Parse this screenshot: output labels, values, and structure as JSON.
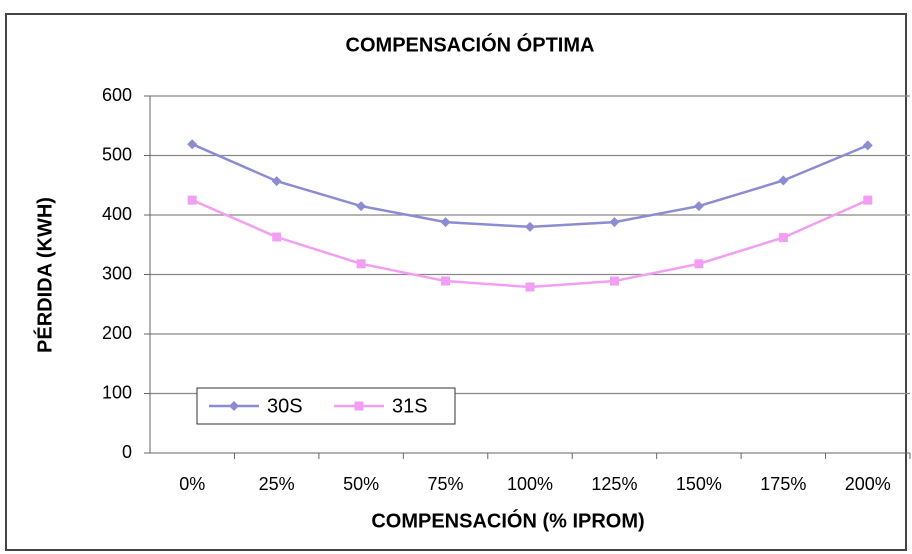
{
  "chart_data": {
    "type": "line",
    "title": "COMPENSACIÓN ÓPTIMA",
    "xlabel": "COMPENSACIÓN (% IPROM)",
    "ylabel": "PÉRDIDA (KWH)",
    "categories": [
      "0%",
      "25%",
      "50%",
      "75%",
      "100%",
      "125%",
      "150%",
      "175%",
      "200%"
    ],
    "series": [
      {
        "name": "30S",
        "color": "#8c8cd2",
        "marker": "diamond",
        "values": [
          519,
          457,
          415,
          388,
          380,
          388,
          415,
          458,
          517
        ]
      },
      {
        "name": "31S",
        "color": "#f29ef2",
        "marker": "square",
        "values": [
          425,
          363,
          318,
          289,
          279,
          289,
          318,
          362,
          425
        ]
      }
    ],
    "ylim": [
      0,
      600
    ],
    "yticks": [
      0,
      100,
      200,
      300,
      400,
      500,
      600
    ],
    "grid": true,
    "legend": "lower left"
  }
}
